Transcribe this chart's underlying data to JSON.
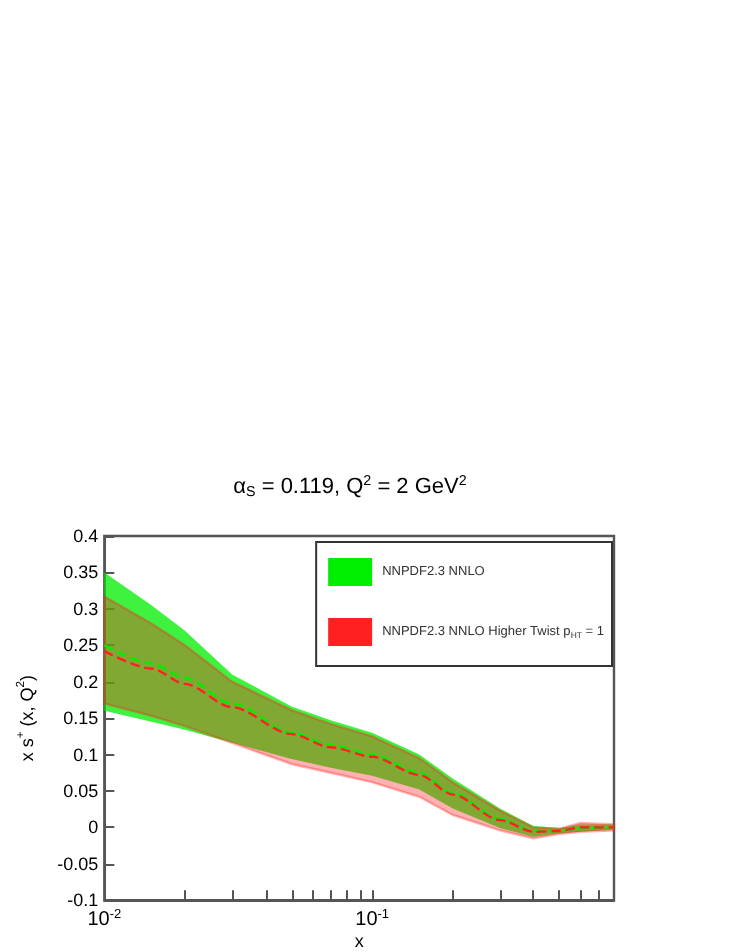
{
  "chart_data": {
    "type": "line",
    "title": "α$_{S}$ = 0.119, Q$^{2}$ = 2 GeV$^{2}$",
    "xlabel": "x",
    "ylabel": "x s$^{+}$ (x, Q$^{2}$)",
    "x": [
      0.01,
      0.015,
      0.02,
      0.03,
      0.05,
      0.07,
      0.1,
      0.15,
      0.2,
      0.3,
      0.4,
      0.5,
      0.6,
      0.8
    ],
    "series": [
      {
        "name": "NNPDF2.3 NNLO",
        "color": "#00ee00",
        "values": [
          0.25,
          0.225,
          0.205,
          0.17,
          0.13,
          0.113,
          0.1,
          0.075,
          0.047,
          0.012,
          -0.005,
          -0.005,
          -0.001,
          0.0
        ],
        "lower": [
          0.16,
          0.145,
          0.134,
          0.116,
          0.094,
          0.082,
          0.071,
          0.052,
          0.026,
          -0.001,
          -0.013,
          -0.008,
          -0.006,
          -0.003
        ],
        "upper": [
          0.35,
          0.305,
          0.27,
          0.21,
          0.166,
          0.147,
          0.13,
          0.1,
          0.067,
          0.026,
          0.002,
          -0.001,
          0.004,
          0.004
        ]
      },
      {
        "name": "NNPDF2.3 NNLO Higher Twist p$_{HT}$ = 1",
        "color": "#ff2020",
        "values": [
          0.242,
          0.218,
          0.197,
          0.165,
          0.128,
          0.11,
          0.097,
          0.072,
          0.045,
          0.01,
          -0.006,
          -0.005,
          0.0,
          0.0
        ],
        "lower": [
          0.17,
          0.153,
          0.139,
          0.116,
          0.087,
          0.075,
          0.062,
          0.042,
          0.017,
          -0.004,
          -0.015,
          -0.009,
          -0.006,
          -0.004
        ],
        "upper": [
          0.317,
          0.28,
          0.25,
          0.2,
          0.161,
          0.142,
          0.125,
          0.095,
          0.062,
          0.023,
          0.0,
          -0.002,
          0.006,
          0.004
        ]
      }
    ],
    "xlim": [
      0.01,
      0.8
    ],
    "xticks": [
      {
        "value": 0.01,
        "label": "10$^{-2}$"
      },
      {
        "value": 0.02,
        "label": null
      },
      {
        "value": 0.03,
        "label": null
      },
      {
        "value": 0.04,
        "label": null
      },
      {
        "value": 0.05,
        "label": null
      },
      {
        "value": 0.06,
        "label": null
      },
      {
        "value": 0.07,
        "label": null
      },
      {
        "value": 0.08,
        "label": null
      },
      {
        "value": 0.09,
        "label": null
      },
      {
        "value": 0.1,
        "label": "10$^{-1}$"
      },
      {
        "value": 0.2,
        "label": null
      },
      {
        "value": 0.3,
        "label": null
      },
      {
        "value": 0.4,
        "label": null
      },
      {
        "value": 0.5,
        "label": null
      },
      {
        "value": 0.6,
        "label": null
      },
      {
        "value": 0.7,
        "label": null
      }
    ],
    "ylim": [
      -0.1,
      0.4
    ],
    "yticks": [
      -0.1,
      -0.05,
      0,
      0.05,
      0.1,
      0.15,
      0.2,
      0.25,
      0.3,
      0.35,
      0.4
    ],
    "log": "x",
    "grid": false,
    "legend": "top right",
    "line_style": "dashed",
    "marker": "none"
  }
}
